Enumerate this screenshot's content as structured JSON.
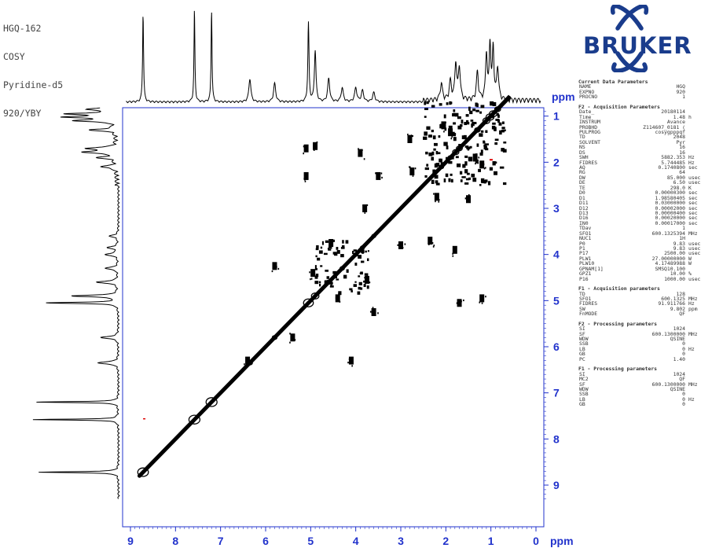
{
  "header": {
    "lines": [
      "HGQ-162",
      "COSY",
      "Pyridine-d5",
      "920/YBY"
    ]
  },
  "logo": {
    "text": "BRUKER",
    "color": "#1a3c8c"
  },
  "axis": {
    "unit": "ppm",
    "color": "#2233cc"
  },
  "parameters": {
    "blocks": [
      {
        "title": "Current Data Parameters",
        "rows": [
          [
            "NAME",
            "HGQ",
            ""
          ],
          [
            "EXPNO",
            "920",
            ""
          ],
          [
            "PROCNO",
            "1",
            ""
          ]
        ]
      },
      {
        "title": "F2 - Acquisition Parameters",
        "rows": [
          [
            "Date_",
            "20180114",
            ""
          ],
          [
            "Time",
            "1.48",
            "h"
          ],
          [
            "INSTRUM",
            "Avance",
            ""
          ],
          [
            "PROBHD",
            "Z114607_0181 (",
            ""
          ],
          [
            "PULPROG",
            "cosygpppqf",
            ""
          ],
          [
            "TD",
            "2048",
            ""
          ],
          [
            "SOLVENT",
            "Pyr",
            ""
          ],
          [
            "NS",
            "16",
            ""
          ],
          [
            "DS",
            "16",
            ""
          ],
          [
            "SWH",
            "5882.353",
            "Hz"
          ],
          [
            "FIDRES",
            "5.744485",
            "Hz"
          ],
          [
            "AQ",
            "0.1740800",
            "sec"
          ],
          [
            "RG",
            "64",
            ""
          ],
          [
            "DW",
            "85.000",
            "usec"
          ],
          [
            "DE",
            "6.50",
            "usec"
          ],
          [
            "TE",
            "298.0",
            "K"
          ],
          [
            "D0",
            "0.00000300",
            "sec"
          ],
          [
            "D1",
            "1.98580405",
            "sec"
          ],
          [
            "D11",
            "0.03000000",
            "sec"
          ],
          [
            "D12",
            "0.00002000",
            "sec"
          ],
          [
            "D13",
            "0.00000400",
            "sec"
          ],
          [
            "D16",
            "0.00020000",
            "sec"
          ],
          [
            "IN0",
            "0.00017000",
            "sec"
          ],
          [
            "TDav",
            "1",
            ""
          ],
          [
            "SFO1",
            "600.1325394",
            "MHz"
          ],
          [
            "NUC1",
            "1H",
            ""
          ],
          [
            "P0",
            "9.83",
            "usec"
          ],
          [
            "P1",
            "9.83",
            "usec"
          ],
          [
            "P17",
            "2500.00",
            "usec"
          ],
          [
            "PLW1",
            "27.00000000",
            "W"
          ],
          [
            "PLW10",
            "4.17489988",
            "W"
          ],
          [
            "GPNAM[1]",
            "SMSQ10.100",
            ""
          ],
          [
            "GPZ1",
            "10.00",
            "%"
          ],
          [
            "P16",
            "1000.00",
            "usec"
          ]
        ]
      },
      {
        "title": "F1 - Acquisition parameters",
        "rows": [
          [
            "TD",
            "128",
            ""
          ],
          [
            "SFO1",
            "600.1325",
            "MHz"
          ],
          [
            "FIDRES",
            "91.911766",
            "Hz"
          ],
          [
            "SW",
            "9.802",
            "ppm"
          ],
          [
            "FnMODE",
            "QF",
            ""
          ]
        ]
      },
      {
        "title": "F2 - Processing parameters",
        "rows": [
          [
            "SI",
            "1024",
            ""
          ],
          [
            "SF",
            "600.1300000",
            "MHz"
          ],
          [
            "WDW",
            "QSINE",
            ""
          ],
          [
            "SSB",
            "0",
            ""
          ],
          [
            "LB",
            "0",
            "Hz"
          ],
          [
            "GB",
            "0",
            ""
          ],
          [
            "PC",
            "1.40",
            ""
          ]
        ]
      },
      {
        "title": "F1 - Processing parameters",
        "rows": [
          [
            "SI",
            "1024",
            ""
          ],
          [
            "MC2",
            "QF",
            ""
          ],
          [
            "SF",
            "600.1300000",
            "MHz"
          ],
          [
            "WDW",
            "QSINE",
            ""
          ],
          [
            "SSB",
            "0",
            ""
          ],
          [
            "LB",
            "0",
            "Hz"
          ],
          [
            "GB",
            "0",
            ""
          ]
        ]
      }
    ]
  },
  "chart_data": {
    "type": "heatmap",
    "title": "",
    "xlabel": "ppm",
    "ylabel": "ppm",
    "xlim": [
      9.0,
      0.0
    ],
    "ylim": [
      0.0,
      9.0
    ],
    "x_ticks": [
      9,
      8,
      7,
      6,
      5,
      4,
      3,
      2,
      1,
      0
    ],
    "y_ticks": [
      1,
      2,
      3,
      4,
      5,
      6,
      7,
      8,
      9
    ],
    "x_axis_reversed": true,
    "y_axis_reversed": true,
    "projection_peaks_ppm": [
      [
        8.72,
        0.95
      ],
      [
        7.58,
        1.0
      ],
      [
        7.2,
        1.0
      ],
      [
        6.35,
        0.25
      ],
      [
        5.8,
        0.2
      ],
      [
        5.05,
        0.85
      ],
      [
        4.9,
        0.55
      ],
      [
        4.6,
        0.25
      ],
      [
        4.3,
        0.15
      ],
      [
        4.0,
        0.15
      ],
      [
        3.85,
        0.12
      ],
      [
        3.6,
        0.1
      ],
      [
        2.1,
        0.18
      ],
      [
        1.9,
        0.2
      ],
      [
        1.78,
        0.4
      ],
      [
        1.7,
        0.35
      ],
      [
        1.3,
        0.3
      ],
      [
        1.1,
        0.5
      ],
      [
        1.02,
        0.6
      ],
      [
        0.95,
        0.55
      ],
      [
        0.85,
        0.35
      ]
    ],
    "cross_peaks_ppm": [
      [
        5.1,
        1.7
      ],
      [
        4.9,
        1.65
      ],
      [
        3.9,
        1.8
      ],
      [
        1.7,
        5.05
      ],
      [
        1.8,
        3.9
      ],
      [
        4.55,
        3.75
      ],
      [
        3.75,
        4.55
      ],
      [
        3.0,
        3.8
      ],
      [
        3.8,
        3.0
      ],
      [
        2.35,
        3.7
      ],
      [
        4.4,
        4.95
      ],
      [
        4.95,
        4.4
      ],
      [
        1.2,
        4.95
      ],
      [
        2.2,
        2.75
      ],
      [
        2.75,
        2.2
      ],
      [
        1.5,
        2.8
      ],
      [
        2.8,
        1.5
      ],
      [
        6.4,
        6.3
      ],
      [
        5.4,
        5.8
      ],
      [
        4.1,
        6.3
      ],
      [
        5.8,
        4.25
      ],
      [
        1.35,
        1.9
      ],
      [
        1.9,
        1.35
      ],
      [
        1.2,
        2.05
      ],
      [
        2.05,
        1.2
      ],
      [
        3.6,
        5.25
      ],
      [
        5.1,
        2.3
      ],
      [
        3.5,
        2.3
      ]
    ],
    "diagonal": [
      [
        0.6,
        0.6
      ],
      [
        8.8,
        8.8
      ]
    ]
  }
}
